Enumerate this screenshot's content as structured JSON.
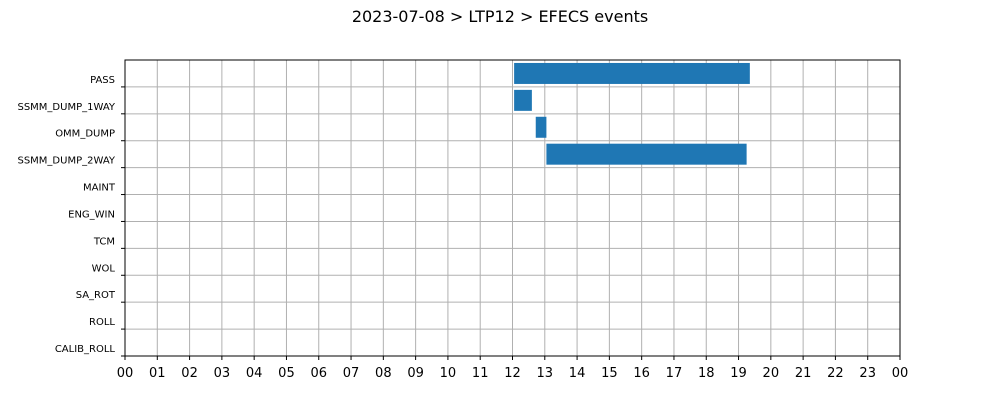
{
  "chart_data": {
    "type": "bar",
    "orientation": "horizontal-timeline",
    "title": "2023-07-08 > LTP12 > EFECS events",
    "xlabel": "",
    "ylabel": "",
    "xlim": [
      0,
      24
    ],
    "x_tick_labels": [
      "00",
      "01",
      "02",
      "03",
      "04",
      "05",
      "06",
      "07",
      "08",
      "09",
      "10",
      "11",
      "12",
      "13",
      "14",
      "15",
      "16",
      "17",
      "18",
      "19",
      "20",
      "21",
      "22",
      "23",
      "00"
    ],
    "categories": [
      "PASS",
      "SSMM_DUMP_1WAY",
      "OMM_DUMP",
      "SSMM_DUMP_2WAY",
      "MAINT",
      "ENG_WIN",
      "TCM",
      "WOL",
      "SA_ROT",
      "ROLL",
      "CALIB_ROLL"
    ],
    "bars": [
      {
        "category": "PASS",
        "start": 12.05,
        "end": 19.35
      },
      {
        "category": "SSMM_DUMP_1WAY",
        "start": 12.05,
        "end": 12.6
      },
      {
        "category": "OMM_DUMP",
        "start": 12.72,
        "end": 13.05
      },
      {
        "category": "SSMM_DUMP_2WAY",
        "start": 13.05,
        "end": 19.25
      }
    ],
    "grid": true,
    "bar_color": "#1f77b4"
  }
}
